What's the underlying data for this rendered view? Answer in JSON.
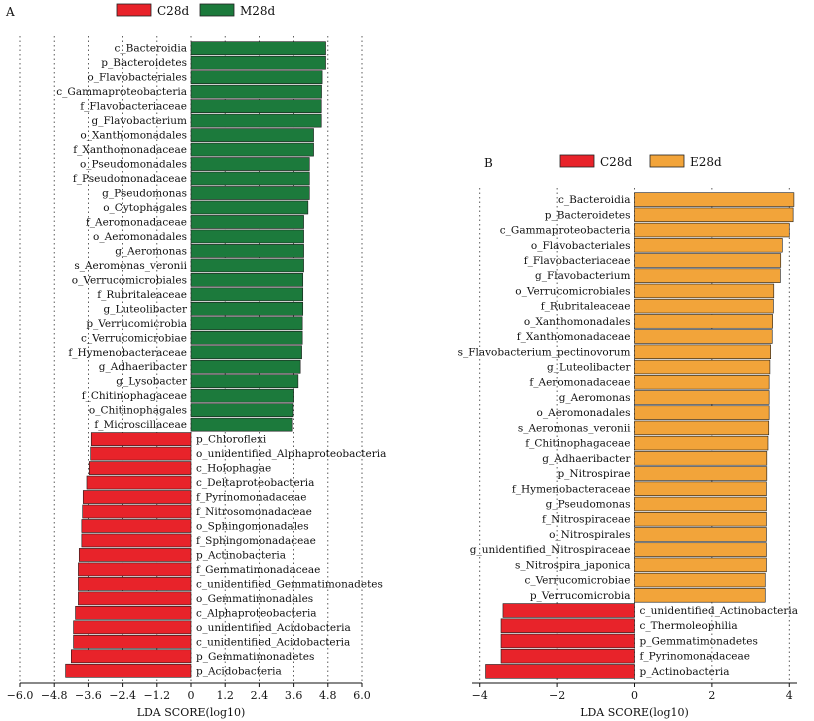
{
  "chart_data": [
    {
      "type": "bar",
      "orientation": "horizontal",
      "panel_label": "A",
      "xlabel": "LDA SCORE(log10)",
      "xlim": [
        -6.0,
        6.0
      ],
      "xticks": [
        -6.0,
        -4.8,
        -3.6,
        -2.4,
        -1.2,
        0,
        1.2,
        2.4,
        3.6,
        4.8,
        6.0
      ],
      "xtick_labels": [
        "−6.0",
        "−4.8",
        "−3.6",
        "−2.4",
        "−1.2",
        "0",
        "1.2",
        "2.4",
        "3.6",
        "4.8",
        "6.0"
      ],
      "grid": "vertical dotted lines at ticks",
      "legend_position": "top",
      "colors": {
        "C28d": "#e8232a",
        "M28d": "#1c7a3c"
      },
      "legend": [
        {
          "label": "C28d",
          "color": "#e8232a"
        },
        {
          "label": "M28d",
          "color": "#1c7a3c"
        }
      ],
      "bars": [
        {
          "label": "c_Bacteroidia",
          "value": 4.72,
          "group": "M28d"
        },
        {
          "label": "p_Bacteroidetes",
          "value": 4.72,
          "group": "M28d"
        },
        {
          "label": "o_Flavobacteriales",
          "value": 4.6,
          "group": "M28d"
        },
        {
          "label": "c_Gammaproteobacteria",
          "value": 4.58,
          "group": "M28d"
        },
        {
          "label": "f_Flavobacteriaceae",
          "value": 4.57,
          "group": "M28d"
        },
        {
          "label": "g_Flavobacterium",
          "value": 4.57,
          "group": "M28d"
        },
        {
          "label": "o_Xanthomonadales",
          "value": 4.3,
          "group": "M28d"
        },
        {
          "label": "f_Xanthomonadaceae",
          "value": 4.3,
          "group": "M28d"
        },
        {
          "label": "o_Pseudomonadales",
          "value": 4.15,
          "group": "M28d"
        },
        {
          "label": "f_Pseudomonadaceae",
          "value": 4.15,
          "group": "M28d"
        },
        {
          "label": "g_Pseudomonas",
          "value": 4.15,
          "group": "M28d"
        },
        {
          "label": "o_Cytophagales",
          "value": 4.1,
          "group": "M28d"
        },
        {
          "label": "f_Aeromonadaceae",
          "value": 3.95,
          "group": "M28d"
        },
        {
          "label": "o_Aeromonadales",
          "value": 3.95,
          "group": "M28d"
        },
        {
          "label": "g_Aeromonas",
          "value": 3.95,
          "group": "M28d"
        },
        {
          "label": "s_Aeromonas_veronii",
          "value": 3.95,
          "group": "M28d"
        },
        {
          "label": "o_Verrucomicrobiales",
          "value": 3.92,
          "group": "M28d"
        },
        {
          "label": "f_Rubritaleaceae",
          "value": 3.92,
          "group": "M28d"
        },
        {
          "label": "g_Luteolibacter",
          "value": 3.92,
          "group": "M28d"
        },
        {
          "label": "p_Verrucomicrobia",
          "value": 3.9,
          "group": "M28d"
        },
        {
          "label": "c_Verrucomicrobiae",
          "value": 3.9,
          "group": "M28d"
        },
        {
          "label": "f_Hymenobacteraceae",
          "value": 3.88,
          "group": "M28d"
        },
        {
          "label": "g_Adhaeribacter",
          "value": 3.83,
          "group": "M28d"
        },
        {
          "label": "g_Lysobacter",
          "value": 3.75,
          "group": "M28d"
        },
        {
          "label": "f_Chitinophagaceae",
          "value": 3.6,
          "group": "M28d"
        },
        {
          "label": "o_Chitinophagales",
          "value": 3.58,
          "group": "M28d"
        },
        {
          "label": "f_Microscillaceae",
          "value": 3.55,
          "group": "M28d"
        },
        {
          "label": "p_Chloroflexi",
          "value": -3.5,
          "group": "C28d"
        },
        {
          "label": "o_unidentified_Alphaproteobacteria",
          "value": -3.52,
          "group": "C28d"
        },
        {
          "label": "c_Holophagae",
          "value": -3.57,
          "group": "C28d"
        },
        {
          "label": "c_Deltaproteobacteria",
          "value": -3.65,
          "group": "C28d"
        },
        {
          "label": "f_Pyrinomonadaceae",
          "value": -3.78,
          "group": "C28d"
        },
        {
          "label": "f_Nitrosomonadaceae",
          "value": -3.8,
          "group": "C28d"
        },
        {
          "label": "o_Sphingomonadales",
          "value": -3.83,
          "group": "C28d"
        },
        {
          "label": "f_Sphingomonadaceae",
          "value": -3.83,
          "group": "C28d"
        },
        {
          "label": "p_Actinobacteria",
          "value": -3.92,
          "group": "C28d"
        },
        {
          "label": "f_Gemmatimonadaceae",
          "value": -3.95,
          "group": "C28d"
        },
        {
          "label": "c_unidentified_Gemmatimonadetes",
          "value": -3.95,
          "group": "C28d"
        },
        {
          "label": "o_Gemmatimonadales",
          "value": -3.95,
          "group": "C28d"
        },
        {
          "label": "c_Alphaproteobacteria",
          "value": -4.05,
          "group": "C28d"
        },
        {
          "label": "o_unidentified_Acidobacteria",
          "value": -4.12,
          "group": "C28d"
        },
        {
          "label": "c_unidentified_Acidobacteria",
          "value": -4.12,
          "group": "C28d"
        },
        {
          "label": "p_Gemmatimonadetes",
          "value": -4.2,
          "group": "C28d"
        },
        {
          "label": "p_Acidobacteria",
          "value": -4.4,
          "group": "C28d"
        }
      ]
    },
    {
      "type": "bar",
      "orientation": "horizontal",
      "panel_label": "B",
      "xlabel": "LDA SCORE(log10)",
      "xlim": [
        -4.2,
        4.2
      ],
      "xticks": [
        -4,
        -2,
        0,
        2,
        4
      ],
      "xtick_labels": [
        "−4",
        "−2",
        "0",
        "2",
        "4"
      ],
      "grid": "vertical dotted lines at ticks",
      "legend_position": "top",
      "colors": {
        "C28d": "#e8232a",
        "E28d": "#f2a43a"
      },
      "legend": [
        {
          "label": "C28d",
          "color": "#e8232a"
        },
        {
          "label": "E28d",
          "color": "#f2a43a"
        }
      ],
      "bars": [
        {
          "label": "c_Bacteroidia",
          "value": 4.12,
          "group": "E28d"
        },
        {
          "label": "p_Bacteroidetes",
          "value": 4.1,
          "group": "E28d"
        },
        {
          "label": "c_Gammaproteobacteria",
          "value": 4.0,
          "group": "E28d"
        },
        {
          "label": "o_Flavobacteriales",
          "value": 3.82,
          "group": "E28d"
        },
        {
          "label": "f_Flavobacteriaceae",
          "value": 3.78,
          "group": "E28d"
        },
        {
          "label": "g_Flavobacterium",
          "value": 3.77,
          "group": "E28d"
        },
        {
          "label": "o_Verrucomicrobiales",
          "value": 3.6,
          "group": "E28d"
        },
        {
          "label": "f_Rubritaleaceae",
          "value": 3.59,
          "group": "E28d"
        },
        {
          "label": "o_Xanthomonadales",
          "value": 3.57,
          "group": "E28d"
        },
        {
          "label": "f_Xanthomonadaceae",
          "value": 3.56,
          "group": "E28d"
        },
        {
          "label": "s_Flavobacterium_pectinovorum",
          "value": 3.52,
          "group": "E28d"
        },
        {
          "label": "g_Luteolibacter",
          "value": 3.5,
          "group": "E28d"
        },
        {
          "label": "f_Aeromonadaceae",
          "value": 3.48,
          "group": "E28d"
        },
        {
          "label": "g_Aeromonas",
          "value": 3.48,
          "group": "E28d"
        },
        {
          "label": "o_Aeromonadales",
          "value": 3.48,
          "group": "E28d"
        },
        {
          "label": "s_Aeromonas_veronii",
          "value": 3.47,
          "group": "E28d"
        },
        {
          "label": "f_Chitinophagaceae",
          "value": 3.45,
          "group": "E28d"
        },
        {
          "label": "g_Adhaeribacter",
          "value": 3.42,
          "group": "E28d"
        },
        {
          "label": "p_Nitrospirae",
          "value": 3.42,
          "group": "E28d"
        },
        {
          "label": "f_Hymenobacteraceae",
          "value": 3.41,
          "group": "E28d"
        },
        {
          "label": "g_Pseudomonas",
          "value": 3.41,
          "group": "E28d"
        },
        {
          "label": "f_Nitrospiraceae",
          "value": 3.41,
          "group": "E28d"
        },
        {
          "label": "o_Nitrospirales",
          "value": 3.41,
          "group": "E28d"
        },
        {
          "label": "g_unidentified_Nitrospiraceae",
          "value": 3.41,
          "group": "E28d"
        },
        {
          "label": "s_Nitrospira_japonica",
          "value": 3.41,
          "group": "E28d"
        },
        {
          "label": "c_Verrucomicrobiae",
          "value": 3.38,
          "group": "E28d"
        },
        {
          "label": "p_Verrucomicrobia",
          "value": 3.38,
          "group": "E28d"
        },
        {
          "label": "c_unidentified_Actinobacteria",
          "value": -3.4,
          "group": "C28d"
        },
        {
          "label": "c_Thermoleophilia",
          "value": -3.45,
          "group": "C28d"
        },
        {
          "label": "p_Gemmatimonadetes",
          "value": -3.45,
          "group": "C28d"
        },
        {
          "label": "f_Pyrinomonadaceae",
          "value": -3.45,
          "group": "C28d"
        },
        {
          "label": "p_Actinobacteria",
          "value": -3.85,
          "group": "C28d"
        }
      ]
    }
  ]
}
